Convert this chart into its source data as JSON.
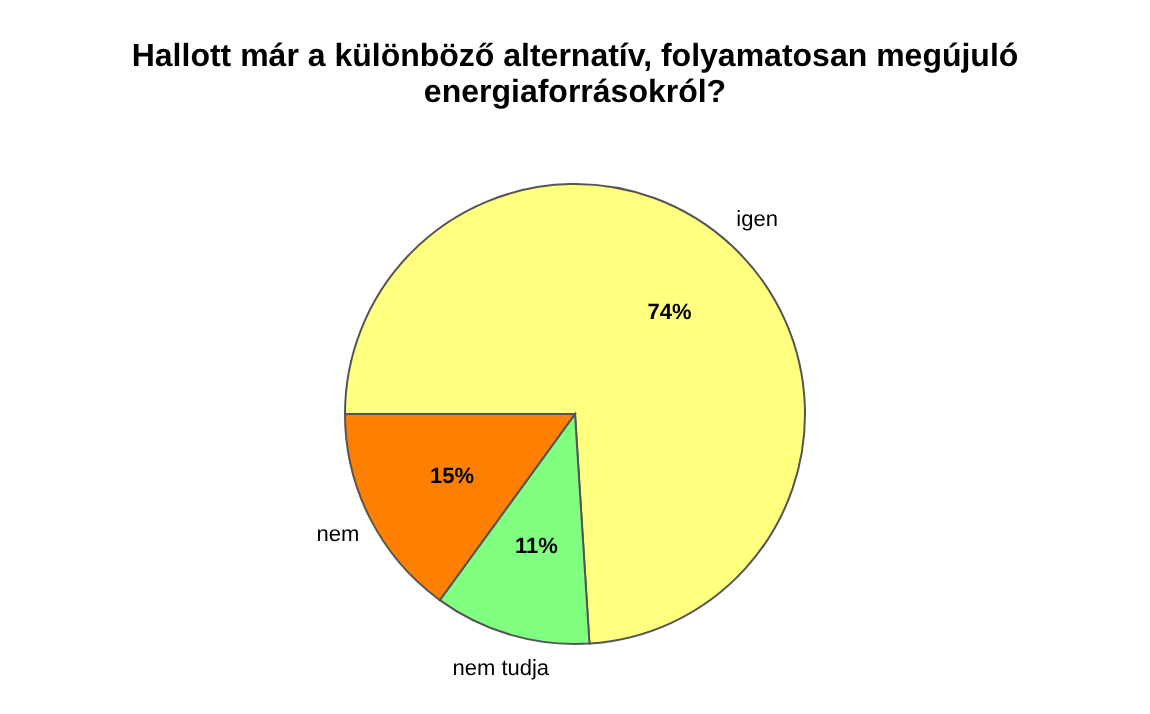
{
  "chart_data": {
    "type": "pie",
    "title": "Hallott már a különböző alternatív, folyamatosan megújuló\nenergiaforrásokról?",
    "categories": [
      "igen",
      "nem tudja",
      "nem"
    ],
    "values": [
      74,
      11,
      15
    ],
    "value_labels": [
      "74%",
      "11%",
      "15%"
    ],
    "colors": [
      "#ffff80",
      "#80ff80",
      "#ff8000"
    ],
    "legend": false
  }
}
